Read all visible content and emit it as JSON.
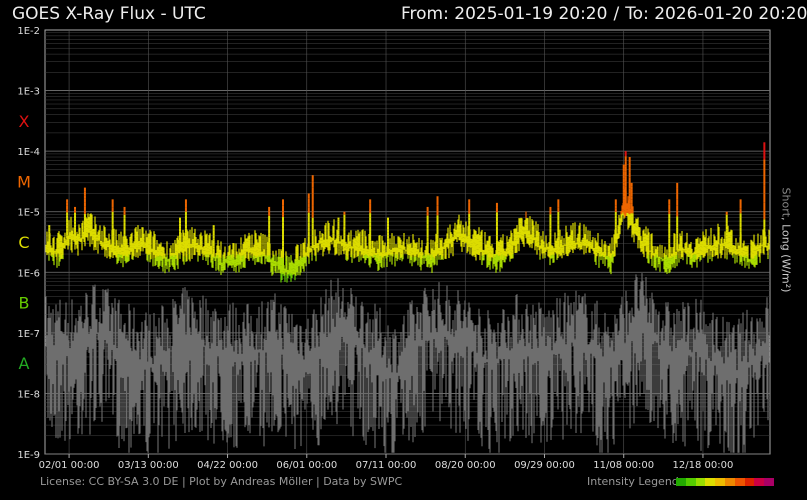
{
  "header": {
    "title": "GOES X-Ray Flux - UTC",
    "from_label": "From: 2025-01-19 20:20",
    "separator": "/",
    "to_label": "To: 2026-01-20 20:20"
  },
  "footer": {
    "credits": "License: CC BY-SA 3.0 DE | Plot by Andreas Möller | Data by SWPC",
    "legend_label": "Intensity Legend",
    "legend_colors": [
      "#22aa00",
      "#55cc00",
      "#99dd00",
      "#dddd00",
      "#eebb00",
      "#ee8800",
      "#ee5500",
      "#dd2200",
      "#cc0044",
      "#aa0066"
    ]
  },
  "colors": {
    "background": "#000000",
    "grid": "#444444",
    "grid_major": "#777777",
    "short_channel": "#6e6e6e",
    "class_A": "#22aa22",
    "class_B": "#66cc00",
    "class_C": "#dddd00",
    "class_M": "#ee6600",
    "class_X": "#dd1111"
  },
  "chart_data": {
    "type": "line",
    "title": "GOES X-Ray Flux - UTC",
    "ylabel_short": "Short",
    "ylabel_long": "Long (W/m²)",
    "y_scale": "log",
    "ylim": [
      1e-09,
      0.01
    ],
    "y_ticks": [
      "1E-9",
      "1E-8",
      "1E-7",
      "1E-6",
      "1E-5",
      "1E-4",
      "1E-3",
      "1E-2"
    ],
    "class_labels": [
      "A",
      "B",
      "C",
      "M",
      "X"
    ],
    "x_range": [
      "2025-01-19",
      "2026-01-20"
    ],
    "x_ticks": [
      "02/01 00:00",
      "03/13 00:00",
      "04/22 00:00",
      "06/01 00:00",
      "07/11 00:00",
      "08/20 00:00",
      "09/29 00:00",
      "11/08 00:00",
      "12/18 00:00"
    ],
    "grid": true,
    "series": [
      {
        "name": "Long",
        "x": [
          "2025-01-19",
          "2025-01-25",
          "2025-02-01",
          "2025-02-05",
          "2025-02-10",
          "2025-02-15",
          "2025-02-22",
          "2025-03-01",
          "2025-03-08",
          "2025-03-15",
          "2025-03-22",
          "2025-03-29",
          "2025-04-05",
          "2025-04-12",
          "2025-04-19",
          "2025-04-26",
          "2025-05-03",
          "2025-05-10",
          "2025-05-17",
          "2025-05-24",
          "2025-05-31",
          "2025-06-07",
          "2025-06-14",
          "2025-06-21",
          "2025-06-28",
          "2025-07-05",
          "2025-07-12",
          "2025-07-19",
          "2025-07-26",
          "2025-08-02",
          "2025-08-09",
          "2025-08-16",
          "2025-08-23",
          "2025-08-30",
          "2025-09-06",
          "2025-09-13",
          "2025-09-20",
          "2025-09-27",
          "2025-10-04",
          "2025-10-11",
          "2025-10-18",
          "2025-10-25",
          "2025-11-01",
          "2025-11-08",
          "2025-11-15",
          "2025-11-22",
          "2025-11-29",
          "2025-12-06",
          "2025-12-13",
          "2025-12-20",
          "2025-12-27",
          "2026-01-03",
          "2026-01-10",
          "2026-01-17",
          "2026-01-20"
        ],
        "values": [
          2.5e-06,
          2e-06,
          4e-06,
          3e-06,
          5e-06,
          3.5e-06,
          2.5e-06,
          2e-06,
          3e-06,
          2.2e-06,
          1.6e-06,
          2.2e-06,
          2.8e-06,
          2.2e-06,
          1.4e-06,
          1.6e-06,
          2.5e-06,
          2e-06,
          1.2e-06,
          1e-06,
          2e-06,
          3e-06,
          3.5e-06,
          2.5e-06,
          2.5e-06,
          1.8e-06,
          2e-06,
          2.5e-06,
          2e-06,
          1.6e-06,
          2.5e-06,
          4e-06,
          3e-06,
          2e-06,
          1.6e-06,
          3e-06,
          5e-06,
          2.5e-06,
          2.2e-06,
          3e-06,
          3e-06,
          2.2e-06,
          1.6e-06,
          1.2e-05,
          4e-06,
          2e-06,
          1.5e-06,
          2.5e-06,
          2e-06,
          2.5e-06,
          3e-06,
          2.2e-06,
          1.6e-06,
          3e-06,
          2.5e-06
        ]
      },
      {
        "name": "Short",
        "x": [
          "2025-01-19",
          "2025-02-01",
          "2025-02-15",
          "2025-03-01",
          "2025-03-15",
          "2025-04-01",
          "2025-04-15",
          "2025-05-01",
          "2025-05-15",
          "2025-06-01",
          "2025-06-15",
          "2025-07-01",
          "2025-07-15",
          "2025-08-01",
          "2025-08-15",
          "2025-09-01",
          "2025-09-15",
          "2025-10-01",
          "2025-10-15",
          "2025-11-01",
          "2025-11-15",
          "2025-12-01",
          "2025-12-15",
          "2026-01-01",
          "2026-01-20"
        ],
        "values": [
          6e-08,
          5e-08,
          1e-07,
          4e-08,
          3e-08,
          8e-08,
          5e-08,
          4e-08,
          6e-08,
          3e-08,
          1.2e-07,
          5e-08,
          2e-08,
          1e-07,
          8e-08,
          3e-08,
          6e-08,
          4e-08,
          8e-08,
          3e-08,
          1.5e-07,
          4e-08,
          5e-08,
          2e-08,
          6e-08
        ]
      }
    ],
    "flare_peaks": {
      "x": [
        "2025-01-22",
        "2025-01-31",
        "2025-02-04",
        "2025-02-09",
        "2025-02-23",
        "2025-03-01",
        "2025-03-29",
        "2025-04-01",
        "2025-04-15",
        "2025-05-13",
        "2025-05-20",
        "2025-06-02",
        "2025-06-04",
        "2025-06-17",
        "2025-06-20",
        "2025-07-03",
        "2025-07-12",
        "2025-08-01",
        "2025-08-06",
        "2025-08-22",
        "2025-09-05",
        "2025-10-02",
        "2025-10-06",
        "2025-11-04",
        "2025-11-08",
        "2025-11-09",
        "2025-11-11",
        "2025-11-12",
        "2025-12-01",
        "2025-12-05",
        "2025-12-30",
        "2026-01-06",
        "2026-01-18"
      ],
      "values": [
        6e-06,
        1.6e-05,
        1.2e-05,
        2.5e-05,
        1.6e-05,
        1.2e-05,
        8e-06,
        1.6e-05,
        6e-06,
        1.2e-05,
        1.6e-05,
        2e-05,
        4e-05,
        8e-06,
        1e-05,
        1.6e-05,
        8e-06,
        1.2e-05,
        1.8e-05,
        1.6e-05,
        1.4e-05,
        1.2e-05,
        1.6e-05,
        1.6e-05,
        6e-05,
        0.0001,
        8e-05,
        3e-05,
        1.6e-05,
        3e-05,
        1e-05,
        1.6e-05,
        0.00014
      ]
    }
  }
}
